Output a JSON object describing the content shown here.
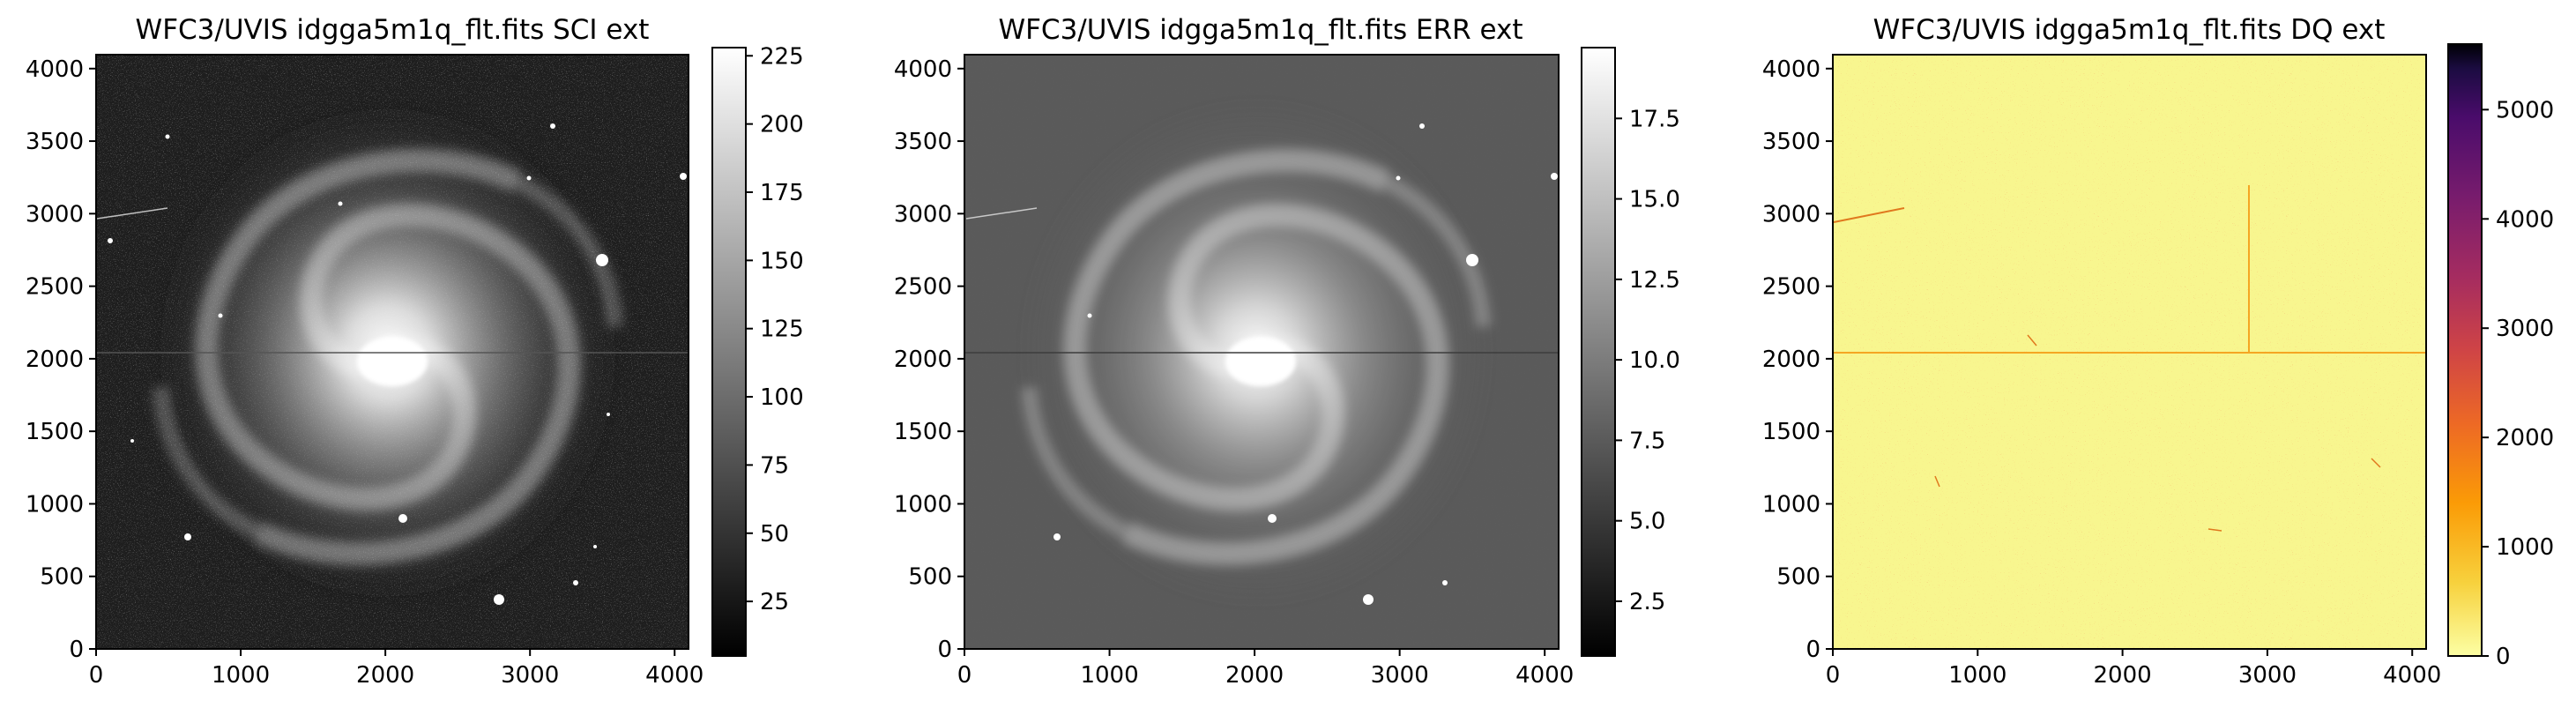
{
  "chart_data": [
    {
      "type": "heatmap",
      "title": "WFC3/UVIS idgga5m1q_flt.fits SCI ext",
      "extension": "SCI",
      "colormap": "gray",
      "xlim": [
        0,
        4096
      ],
      "ylim": [
        0,
        4096
      ],
      "x_ticks": [
        0,
        1000,
        2000,
        3000,
        4000
      ],
      "y_ticks": [
        0,
        500,
        1000,
        1500,
        2000,
        2500,
        3000,
        3500,
        4000
      ],
      "colorbar": {
        "range": [
          5,
          228
        ],
        "ticks": [
          25,
          50,
          75,
          100,
          125,
          150,
          175,
          200,
          225
        ]
      }
    },
    {
      "type": "heatmap",
      "title": "WFC3/UVIS idgga5m1q_flt.fits ERR ext",
      "extension": "ERR",
      "colormap": "gray",
      "xlim": [
        0,
        4096
      ],
      "ylim": [
        0,
        4096
      ],
      "x_ticks": [
        0,
        1000,
        2000,
        3000,
        4000
      ],
      "y_ticks": [
        0,
        500,
        1000,
        1500,
        2000,
        2500,
        3000,
        3500,
        4000
      ],
      "colorbar": {
        "range": [
          0.8,
          19.7
        ],
        "ticks": [
          "2.5",
          "5.0",
          "7.5",
          "10.0",
          "12.5",
          "15.0",
          "17.5"
        ]
      }
    },
    {
      "type": "heatmap",
      "title": "WFC3/UVIS idgga5m1q_flt.fits DQ ext",
      "extension": "DQ",
      "colormap": "inferno_r",
      "xlim": [
        0,
        4096
      ],
      "ylim": [
        0,
        4096
      ],
      "x_ticks": [
        0,
        1000,
        2000,
        3000,
        4000
      ],
      "y_ticks": [
        0,
        500,
        1000,
        1500,
        2000,
        2500,
        3000,
        3500,
        4000
      ],
      "colorbar": {
        "range": [
          0,
          5600
        ],
        "ticks": [
          0,
          1000,
          2000,
          3000,
          4000,
          5000
        ]
      }
    }
  ]
}
